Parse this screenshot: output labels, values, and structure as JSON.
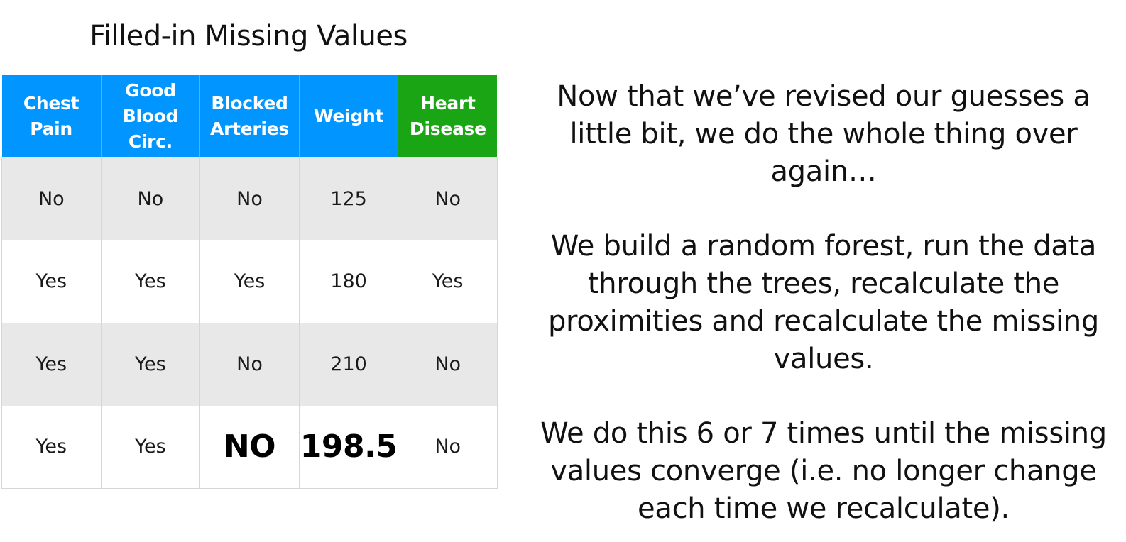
{
  "title": "Filled-in Missing Values",
  "table": {
    "headers": [
      "Chest Pain",
      "Good Blood Circ.",
      "Blocked Arteries",
      "Weight",
      "Heart Disease"
    ],
    "rows": [
      [
        "No",
        "No",
        "No",
        "125",
        "No"
      ],
      [
        "Yes",
        "Yes",
        "Yes",
        "180",
        "Yes"
      ],
      [
        "Yes",
        "Yes",
        "No",
        "210",
        "No"
      ],
      [
        "Yes",
        "Yes",
        "NO",
        "198.5",
        "No"
      ]
    ],
    "colors": {
      "header_feature": "#0095ff",
      "header_outcome": "#1aa614",
      "row_shaded": "#e8e8e8"
    }
  },
  "text": {
    "paragraph1": "Now that we’ve revised our guesses a little bit, we do the whole thing over again…",
    "paragraph2": "We build a random forest, run the data through the trees, recalculate the proximities and recalculate the missing values.",
    "paragraph3": "We do this 6 or 7 times until the missing values converge (i.e. no longer change each time we recalculate)."
  }
}
